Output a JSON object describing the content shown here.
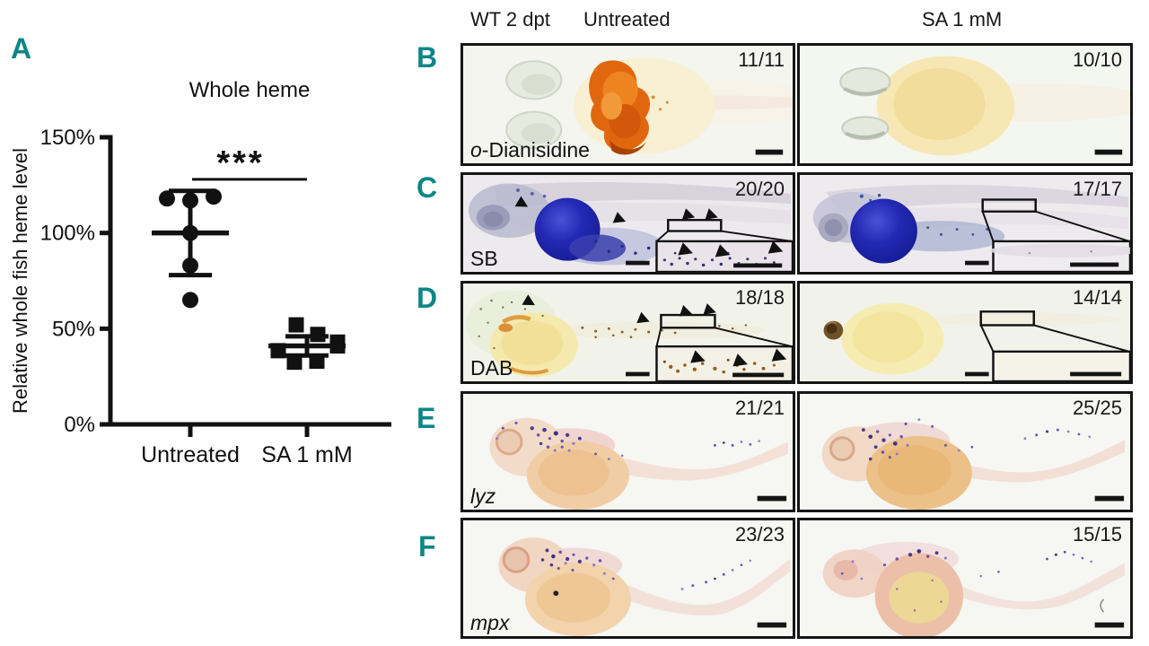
{
  "figure": {
    "accent_color": "#0e8688",
    "panel_letters": {
      "a": "A",
      "b": "B",
      "c": "C",
      "d": "D",
      "e": "E",
      "f": "F"
    }
  },
  "chart_data": {
    "type": "scatter",
    "title": "Whole heme",
    "ylabel": "Relative whole fish heme level",
    "ylim": [
      0,
      150
    ],
    "grid": false,
    "yticks": [
      {
        "value": 0,
        "label": "0%"
      },
      {
        "value": 50,
        "label": "50%"
      },
      {
        "value": 100,
        "label": "100%"
      },
      {
        "value": 150,
        "label": "150%"
      }
    ],
    "groups": [
      {
        "label": "Untreated",
        "marker": "circle",
        "mean": 100,
        "sd": 22,
        "points": [
          {
            "dx": -26,
            "y": 118
          },
          {
            "dx": 0,
            "y": 117
          },
          {
            "dx": 26,
            "y": 119
          },
          {
            "dx": 0,
            "y": 100
          },
          {
            "dx": 0,
            "y": 83
          },
          {
            "dx": 0,
            "y": 65
          }
        ]
      },
      {
        "label": "SA 1 mM",
        "marker": "square",
        "mean": 41,
        "sd": 5,
        "points": [
          {
            "dx": -12,
            "y": 52
          },
          {
            "dx": 12,
            "y": 47
          },
          {
            "dx": 34,
            "y": 43
          },
          {
            "dx": -32,
            "y": 38.5
          },
          {
            "dx": -14,
            "y": 32.5
          },
          {
            "dx": 11,
            "y": 33
          },
          {
            "dx": 34,
            "y": 41
          }
        ]
      }
    ],
    "significance": {
      "label": "***",
      "y": 128,
      "between": [
        0,
        1
      ]
    }
  },
  "right": {
    "header": {
      "left_label": "WT 2 dpt",
      "left_group": "Untreated",
      "right_group": "SA 1 mM"
    },
    "panels": [
      {
        "id": "B",
        "stain_italic": "o",
        "stain_rest": "-Dianisidine",
        "counts": {
          "left": "11/11",
          "right": "10/10"
        }
      },
      {
        "id": "C",
        "stain_rest": "SB",
        "counts": {
          "left": "20/20",
          "right": "17/17"
        }
      },
      {
        "id": "D",
        "stain_rest": "DAB",
        "counts": {
          "left": "18/18",
          "right": "14/14"
        }
      },
      {
        "id": "E",
        "stain_italic": "lyz",
        "counts": {
          "left": "21/21",
          "right": "25/25"
        }
      },
      {
        "id": "F",
        "stain_italic": "mpx",
        "counts": {
          "left": "23/23",
          "right": "15/15"
        }
      }
    ]
  }
}
